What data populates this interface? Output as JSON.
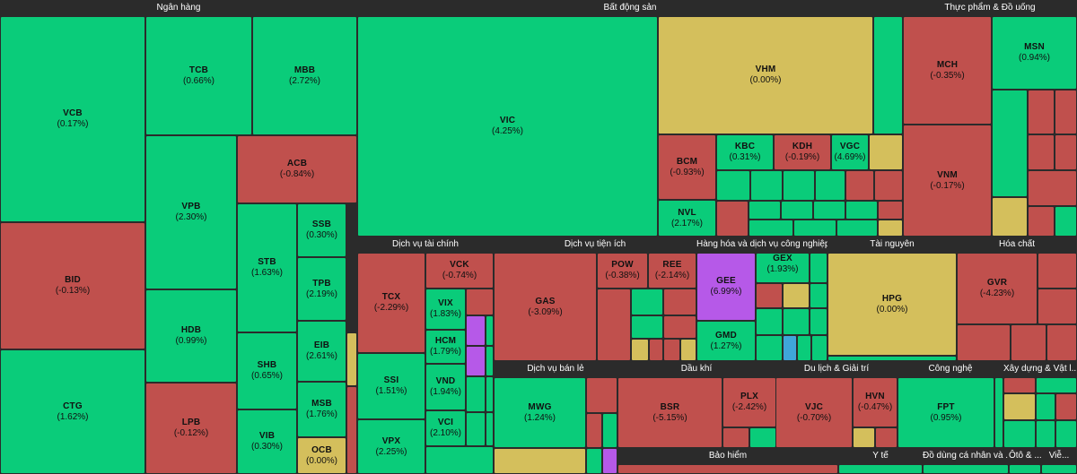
{
  "colors": {
    "up": "#0acc7a",
    "down": "#c0504d",
    "ref": "#d4bf5c",
    "ceil": "#b659e8",
    "floor": "#3fa6d9",
    "bg": "#2b2b2b"
  },
  "sectors": [
    {
      "name": "Ngân hàng",
      "stocks": [
        {
          "ticker": "VCB",
          "change": "(0.17%)",
          "trend": "up"
        },
        {
          "ticker": "BID",
          "change": "(-0.13%)",
          "trend": "down"
        },
        {
          "ticker": "CTG",
          "change": "(1.62%)",
          "trend": "up"
        },
        {
          "ticker": "TCB",
          "change": "(0.66%)",
          "trend": "up"
        },
        {
          "ticker": "MBB",
          "change": "(2.72%)",
          "trend": "up"
        },
        {
          "ticker": "VPB",
          "change": "(2.30%)",
          "trend": "up"
        },
        {
          "ticker": "HDB",
          "change": "(0.99%)",
          "trend": "up"
        },
        {
          "ticker": "LPB",
          "change": "(-0.12%)",
          "trend": "down"
        },
        {
          "ticker": "ACB",
          "change": "(-0.84%)",
          "trend": "down"
        },
        {
          "ticker": "STB",
          "change": "(1.63%)",
          "trend": "up"
        },
        {
          "ticker": "SHB",
          "change": "(0.65%)",
          "trend": "up"
        },
        {
          "ticker": "VIB",
          "change": "(0.30%)",
          "trend": "up"
        },
        {
          "ticker": "SSB",
          "change": "(0.30%)",
          "trend": "up"
        },
        {
          "ticker": "TPB",
          "change": "(2.19%)",
          "trend": "up"
        },
        {
          "ticker": "EIB",
          "change": "(2.61%)",
          "trend": "up"
        },
        {
          "ticker": "MSB",
          "change": "(1.76%)",
          "trend": "up"
        },
        {
          "ticker": "OCB",
          "change": "(0.00%)",
          "trend": "ref"
        }
      ]
    },
    {
      "name": "Bất động sản",
      "stocks": [
        {
          "ticker": "VIC",
          "change": "(4.25%)",
          "trend": "up"
        },
        {
          "ticker": "VHM",
          "change": "(0.00%)",
          "trend": "ref"
        },
        {
          "ticker": "BCM",
          "change": "(-0.93%)",
          "trend": "down"
        },
        {
          "ticker": "KBC",
          "change": "(0.31%)",
          "trend": "up"
        },
        {
          "ticker": "KDH",
          "change": "(-0.19%)",
          "trend": "down"
        },
        {
          "ticker": "VGC",
          "change": "(4.69%)",
          "trend": "up"
        },
        {
          "ticker": "NVL",
          "change": "(2.17%)",
          "trend": "up"
        }
      ]
    },
    {
      "name": "Thực phẩm & Đồ uống",
      "stocks": [
        {
          "ticker": "MCH",
          "change": "(-0.35%)",
          "trend": "down"
        },
        {
          "ticker": "MSN",
          "change": "(0.94%)",
          "trend": "up"
        },
        {
          "ticker": "VNM",
          "change": "(-0.17%)",
          "trend": "down"
        }
      ]
    },
    {
      "name": "Dịch vụ tài chính",
      "stocks": [
        {
          "ticker": "TCX",
          "change": "(-2.29%)",
          "trend": "down"
        },
        {
          "ticker": "VCK",
          "change": "(-0.74%)",
          "trend": "down"
        },
        {
          "ticker": "VIX",
          "change": "(1.83%)",
          "trend": "up"
        },
        {
          "ticker": "HCM",
          "change": "(1.79%)",
          "trend": "up"
        },
        {
          "ticker": "SSI",
          "change": "(1.51%)",
          "trend": "up"
        },
        {
          "ticker": "VND",
          "change": "(1.94%)",
          "trend": "up"
        },
        {
          "ticker": "VCI",
          "change": "(2.10%)",
          "trend": "up"
        },
        {
          "ticker": "VPX",
          "change": "(2.25%)",
          "trend": "up"
        }
      ]
    },
    {
      "name": "Dịch vụ tiện ích",
      "stocks": [
        {
          "ticker": "GAS",
          "change": "(-3.09%)",
          "trend": "down"
        },
        {
          "ticker": "POW",
          "change": "(-0.38%)",
          "trend": "down"
        },
        {
          "ticker": "REE",
          "change": "(-2.14%)",
          "trend": "down"
        }
      ]
    },
    {
      "name": "Hàng hóa và dịch vụ công nghiệp",
      "stocks": [
        {
          "ticker": "GEE",
          "change": "(6.99%)",
          "trend": "ceil"
        },
        {
          "ticker": "GEX",
          "change": "(1.93%)",
          "trend": "up"
        },
        {
          "ticker": "GMD",
          "change": "(1.27%)",
          "trend": "up"
        }
      ]
    },
    {
      "name": "Tài nguyên",
      "stocks": [
        {
          "ticker": "HPG",
          "change": "(0.00%)",
          "trend": "ref"
        }
      ]
    },
    {
      "name": "Hóa chất",
      "stocks": [
        {
          "ticker": "GVR",
          "change": "(-4.23%)",
          "trend": "down"
        }
      ]
    },
    {
      "name": "Dịch vụ bán lẻ",
      "stocks": [
        {
          "ticker": "MWG",
          "change": "(1.24%)",
          "trend": "up"
        }
      ]
    },
    {
      "name": "Dầu khí",
      "stocks": [
        {
          "ticker": "BSR",
          "change": "(-5.15%)",
          "trend": "down"
        },
        {
          "ticker": "PLX",
          "change": "(-2.42%)",
          "trend": "down"
        }
      ]
    },
    {
      "name": "Du lịch & Giải trí",
      "stocks": [
        {
          "ticker": "VJC",
          "change": "(-0.70%)",
          "trend": "down"
        },
        {
          "ticker": "HVN",
          "change": "(-0.47%)",
          "trend": "down"
        }
      ]
    },
    {
      "name": "Công nghệ",
      "stocks": [
        {
          "ticker": "FPT",
          "change": "(0.95%)",
          "trend": "up"
        }
      ]
    },
    {
      "name": "Xây dựng & Vật l...",
      "stocks": []
    },
    {
      "name": "Bảo hiểm",
      "stocks": []
    },
    {
      "name": "Y tế",
      "stocks": []
    },
    {
      "name": "Đồ dùng cá nhân và ...",
      "stocks": []
    },
    {
      "name": "Ôtô & ...",
      "stocks": []
    },
    {
      "name": "Viễ...",
      "stocks": []
    }
  ]
}
